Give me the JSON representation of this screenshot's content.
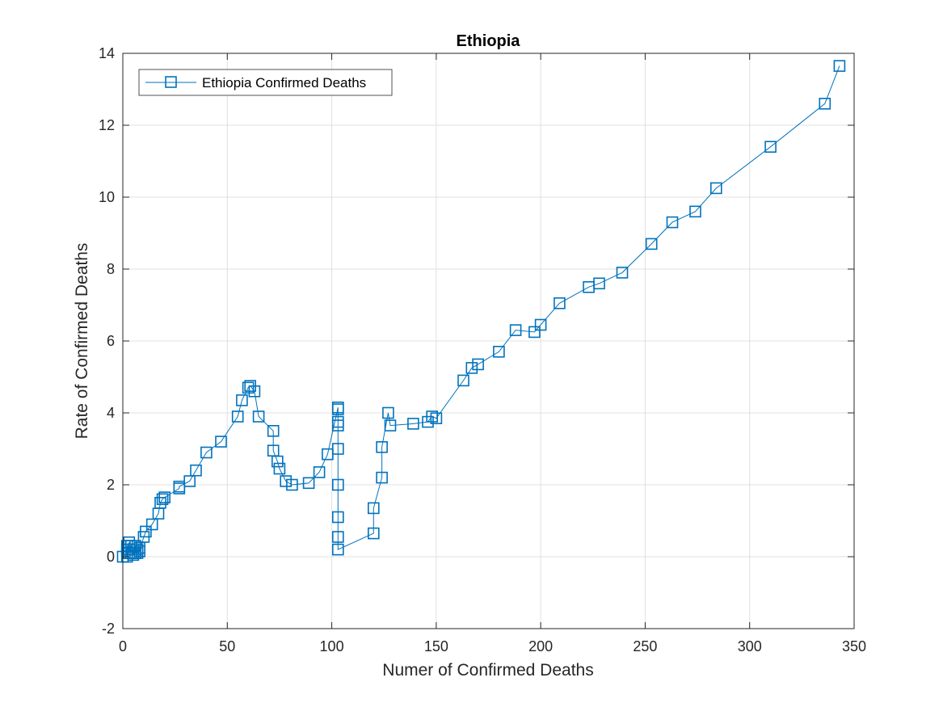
{
  "chart_data": {
    "type": "line",
    "title": "Ethiopia",
    "xlabel": "Numer of Confirmed Deaths",
    "ylabel": "Rate of Confirmed Deaths",
    "xlim": [
      0,
      350
    ],
    "ylim": [
      -2,
      14
    ],
    "xticks": [
      0,
      50,
      100,
      150,
      200,
      250,
      300,
      350
    ],
    "yticks": [
      -2,
      0,
      2,
      4,
      6,
      8,
      10,
      12,
      14
    ],
    "grid": true,
    "legend_position": "top-left",
    "marker": "square",
    "color": "#0072BD",
    "series": [
      {
        "name": "Ethiopia Confirmed Deaths",
        "points": [
          [
            0,
            0
          ],
          [
            2,
            0.1
          ],
          [
            2,
            0.3
          ],
          [
            3,
            0.1
          ],
          [
            2,
            0.2
          ],
          [
            3,
            0.4
          ],
          [
            2,
            0.0
          ],
          [
            3,
            0.3
          ],
          [
            4,
            0.1
          ],
          [
            3,
            0.2
          ],
          [
            4,
            0.3
          ],
          [
            5,
            0.1
          ],
          [
            4,
            0.2
          ],
          [
            5,
            0.2
          ],
          [
            5,
            0.05
          ],
          [
            6,
            0.3
          ],
          [
            6,
            0.1
          ],
          [
            7,
            0.1
          ],
          [
            7,
            0.2
          ],
          [
            8,
            0.25
          ],
          [
            8,
            0.15
          ],
          [
            10,
            0.55
          ],
          [
            11,
            0.7
          ],
          [
            14,
            0.9
          ],
          [
            17,
            1.2
          ],
          [
            18,
            1.5
          ],
          [
            19,
            1.6
          ],
          [
            20,
            1.65
          ],
          [
            27,
            1.9
          ],
          [
            27,
            1.95
          ],
          [
            32,
            2.1
          ],
          [
            35,
            2.4
          ],
          [
            40,
            2.9
          ],
          [
            47,
            3.2
          ],
          [
            55,
            3.9
          ],
          [
            57,
            4.35
          ],
          [
            60,
            4.7
          ],
          [
            61,
            4.75
          ],
          [
            63,
            4.6
          ],
          [
            65,
            3.9
          ],
          [
            72,
            3.5
          ],
          [
            72,
            2.95
          ],
          [
            74,
            2.65
          ],
          [
            75,
            2.45
          ],
          [
            78,
            2.1
          ],
          [
            81,
            2.0
          ],
          [
            89,
            2.05
          ],
          [
            94,
            2.35
          ],
          [
            98,
            2.85
          ],
          [
            103,
            4.15
          ],
          [
            103,
            4.1
          ],
          [
            103,
            3.75
          ],
          [
            103,
            3.65
          ],
          [
            103,
            3.0
          ],
          [
            103,
            2.0
          ],
          [
            103,
            1.1
          ],
          [
            103,
            0.55
          ],
          [
            103,
            0.2
          ],
          [
            120,
            0.65
          ],
          [
            120,
            1.35
          ],
          [
            124,
            2.2
          ],
          [
            124,
            3.05
          ],
          [
            127,
            4.0
          ],
          [
            128,
            3.65
          ],
          [
            139,
            3.7
          ],
          [
            146,
            3.75
          ],
          [
            148,
            3.9
          ],
          [
            150,
            3.85
          ],
          [
            163,
            4.9
          ],
          [
            167,
            5.25
          ],
          [
            170,
            5.35
          ],
          [
            180,
            5.7
          ],
          [
            188,
            6.3
          ],
          [
            197,
            6.25
          ],
          [
            200,
            6.45
          ],
          [
            209,
            7.05
          ],
          [
            223,
            7.5
          ],
          [
            228,
            7.6
          ],
          [
            239,
            7.9
          ],
          [
            253,
            8.7
          ],
          [
            263,
            9.3
          ],
          [
            274,
            9.6
          ],
          [
            284,
            10.25
          ],
          [
            310,
            11.4
          ],
          [
            336,
            12.6
          ],
          [
            343,
            13.65
          ]
        ]
      }
    ]
  }
}
